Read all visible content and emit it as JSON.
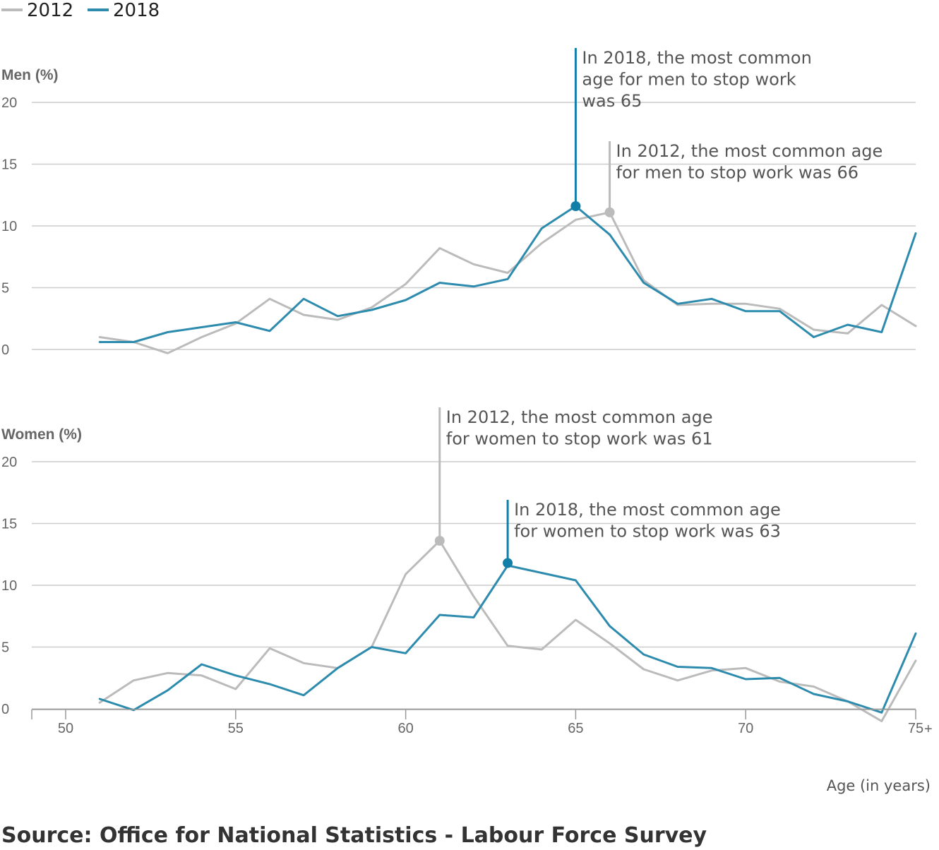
{
  "chart_data": {
    "type": "line",
    "x": [
      51,
      52,
      53,
      54,
      55,
      56,
      57,
      58,
      59,
      60,
      61,
      62,
      63,
      64,
      65,
      66,
      67,
      68,
      69,
      70,
      71,
      72,
      73,
      74,
      75
    ],
    "xticks": [
      50,
      55,
      60,
      65,
      70,
      75
    ],
    "xtick_labels": [
      "50",
      "55",
      "60",
      "65",
      "70",
      "75"
    ],
    "x_last_suffix": "+",
    "xlabel": "Age (in years)",
    "legend": {
      "placement": "top-left",
      "entries": [
        {
          "name": "2012",
          "color": "#bbbbbb"
        },
        {
          "name": "2018",
          "color": "#2d8bad"
        }
      ]
    },
    "source": "Source: Office for National Statistics - Labour Force Survey",
    "panels": [
      {
        "title": "Men (%)",
        "ylim": [
          0,
          20
        ],
        "yticks": [
          0,
          5,
          10,
          15,
          20
        ],
        "series": [
          {
            "name": "2012",
            "color": "#bbbbbb",
            "values": [
              1.0,
              0.6,
              -0.3,
              1.0,
              2.1,
              4.1,
              2.8,
              2.4,
              3.4,
              5.3,
              8.2,
              6.9,
              6.2,
              8.6,
              10.5,
              11.1,
              5.6,
              3.6,
              3.7,
              3.7,
              3.3,
              1.6,
              1.3,
              3.6,
              1.9
            ]
          },
          {
            "name": "2018",
            "color": "#2d8bad",
            "values": [
              0.6,
              0.6,
              1.4,
              1.8,
              2.2,
              1.5,
              4.1,
              2.7,
              3.2,
              4.0,
              5.4,
              5.1,
              5.7,
              9.8,
              11.6,
              9.3,
              5.4,
              3.7,
              4.1,
              3.1,
              3.1,
              1.0,
              2.0,
              1.4,
              9.4
            ]
          }
        ],
        "annotations": [
          {
            "series": "2018",
            "x": 65,
            "y": 11.6,
            "color": "#127fa8",
            "lines": [
              "In 2018, the most common",
              "age for men to stop work",
              "was 65"
            ]
          },
          {
            "series": "2012",
            "x": 66,
            "y": 11.1,
            "color": "#bbbbbb",
            "lines": [
              "In 2012, the most common age",
              "for men to stop work was 66"
            ]
          }
        ]
      },
      {
        "title": "Women (%)",
        "ylim": [
          0,
          20
        ],
        "yticks": [
          0,
          5,
          10,
          15,
          20
        ],
        "series": [
          {
            "name": "2012",
            "color": "#bbbbbb",
            "values": [
              0.5,
              2.3,
              2.9,
              2.7,
              1.6,
              4.9,
              3.7,
              3.3,
              5.0,
              10.9,
              13.6,
              9.1,
              5.1,
              4.8,
              7.2,
              5.3,
              3.2,
              2.3,
              3.1,
              3.3,
              2.2,
              1.8,
              0.6,
              -1.0,
              3.9
            ]
          },
          {
            "name": "2018",
            "color": "#2d8bad",
            "values": [
              0.8,
              -0.1,
              1.5,
              3.6,
              2.7,
              2.0,
              1.1,
              3.3,
              5.0,
              4.5,
              7.6,
              7.4,
              11.6,
              11.0,
              10.4,
              6.7,
              4.4,
              3.4,
              3.3,
              2.4,
              2.5,
              1.2,
              0.6,
              -0.3,
              6.1
            ]
          }
        ],
        "annotations": [
          {
            "series": "2012",
            "x": 61,
            "y": 13.6,
            "color": "#bbbbbb",
            "lines": [
              "In 2012, the most common age",
              "for women to stop work was 61"
            ]
          },
          {
            "series": "2018",
            "x": 63,
            "y": 11.8,
            "color": "#127fa8",
            "lines": [
              "In 2018, the most common age",
              "for women to stop work was 63"
            ]
          }
        ]
      }
    ]
  }
}
